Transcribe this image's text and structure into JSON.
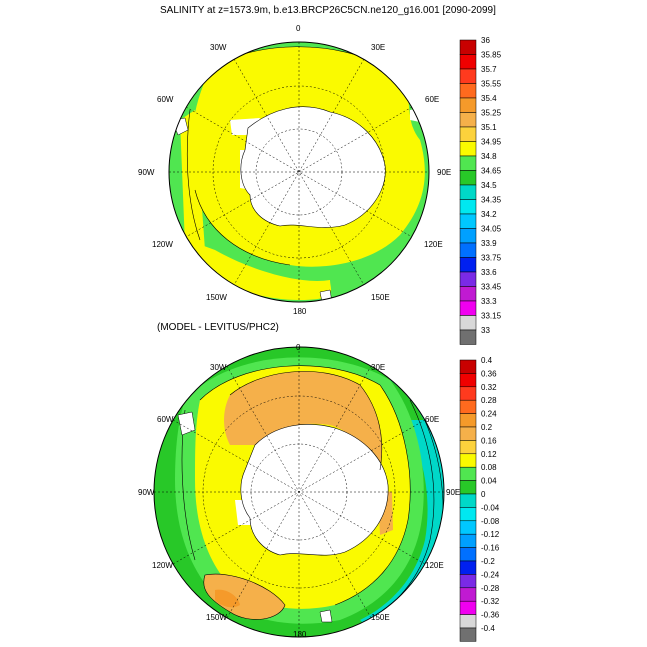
{
  "panels": [
    {
      "title": "SALINITY at z=1573.9m, b.e13.BRCP26C5CN.ne120_g16.001 [2090-2099]",
      "colorbar_labels": [
        "36",
        "35.85",
        "35.7",
        "35.55",
        "35.4",
        "35.25",
        "35.1",
        "34.95",
        "34.8",
        "34.65",
        "34.5",
        "34.35",
        "34.2",
        "34.05",
        "33.9",
        "33.75",
        "33.6",
        "33.45",
        "33.3",
        "33.15",
        "33"
      ],
      "colorbar_colors": [
        "#c80000",
        "#f00000",
        "#ff3a1e",
        "#ff6a1e",
        "#f59a2a",
        "#f5b04a",
        "#fcd23c",
        "#fafa00",
        "#50e650",
        "#28c828",
        "#00d8c8",
        "#00e8f0",
        "#00c8ff",
        "#00a0ff",
        "#0070ff",
        "#0020f0",
        "#7a2ae6",
        "#c01ad2",
        "#f000f0",
        "#d8d8d8",
        "#707070"
      ]
    },
    {
      "title": "(MODEL - LEVITUS/PHC2)",
      "colorbar_labels": [
        "0.4",
        "0.36",
        "0.32",
        "0.28",
        "0.24",
        "0.2",
        "0.16",
        "0.12",
        "0.08",
        "0.04",
        "0",
        "-0.04",
        "-0.08",
        "-0.12",
        "-0.16",
        "-0.2",
        "-0.24",
        "-0.28",
        "-0.32",
        "-0.36",
        "-0.4"
      ],
      "colorbar_colors": [
        "#c80000",
        "#f00000",
        "#ff3a1e",
        "#ff6a1e",
        "#f59a2a",
        "#f5b04a",
        "#fcd23c",
        "#fafa00",
        "#50e650",
        "#28c828",
        "#00d8c8",
        "#00e8f0",
        "#00c8ff",
        "#00a0ff",
        "#0070ff",
        "#0020f0",
        "#7a2ae6",
        "#c01ad2",
        "#f000f0",
        "#d8d8d8",
        "#707070"
      ]
    }
  ],
  "longitude_labels": [
    "0",
    "30E",
    "60E",
    "90E",
    "120E",
    "150E",
    "180",
    "150W",
    "120W",
    "90W",
    "60W",
    "30W"
  ],
  "land_color": "#ffffff",
  "map_projection": "south-polar-stereographic"
}
